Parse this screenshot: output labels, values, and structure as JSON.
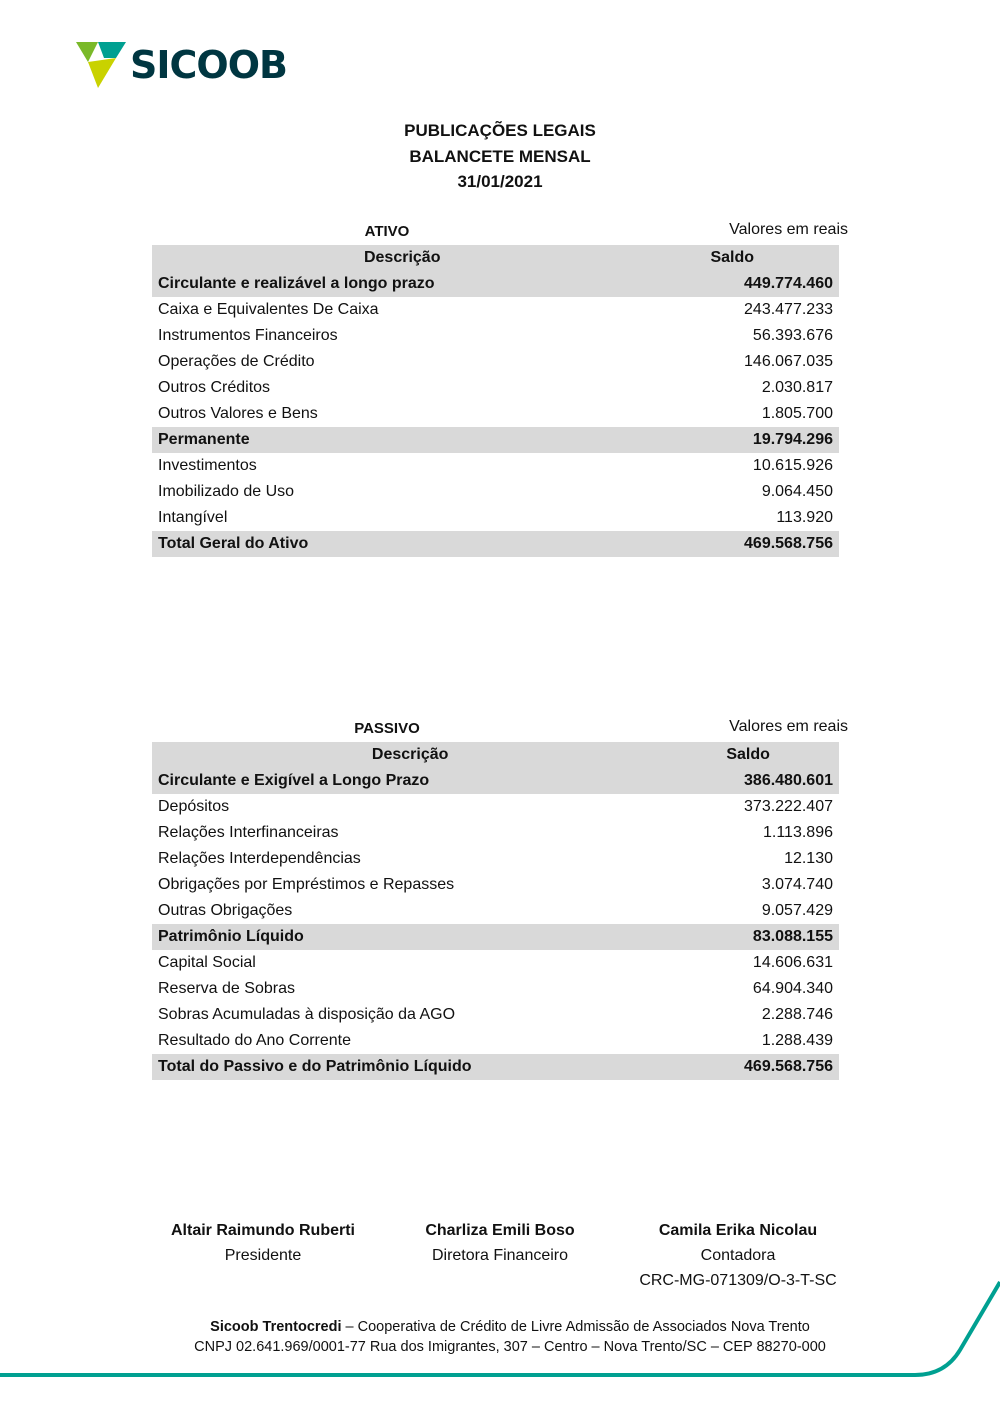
{
  "logo": {
    "text": "SICOOB",
    "colors": {
      "green": "#7ab929",
      "teal": "#00a091",
      "lime": "#c9d200",
      "dark": "#003641"
    }
  },
  "header": {
    "line1": "PUBLICAÇÕES LEGAIS",
    "line2": "BALANCETE MENSAL",
    "line3": "31/01/2021"
  },
  "ativo": {
    "label": "ATIVO",
    "units": "Valores em reais",
    "col_desc": "Descrição",
    "col_saldo": "Saldo",
    "rows": [
      {
        "desc": "Circulante e realizável a longo prazo",
        "value": "449.774.460",
        "bold": true
      },
      {
        "desc": "Caixa e Equivalentes De Caixa",
        "value": "243.477.233"
      },
      {
        "desc": "Instrumentos Financeiros",
        "value": "56.393.676"
      },
      {
        "desc": "Operações de Crédito",
        "value": "146.067.035"
      },
      {
        "desc": "Outros Créditos",
        "value": "2.030.817"
      },
      {
        "desc": "Outros Valores e Bens",
        "value": "1.805.700"
      },
      {
        "desc": "Permanente",
        "value": "19.794.296",
        "bold": true
      },
      {
        "desc": "Investimentos",
        "value": "10.615.926"
      },
      {
        "desc": "Imobilizado de Uso",
        "value": "9.064.450"
      },
      {
        "desc": "Intangível",
        "value": "113.920"
      },
      {
        "desc": "Total Geral do Ativo",
        "value": "469.568.756",
        "bold": true
      }
    ]
  },
  "passivo": {
    "label": "PASSIVO",
    "units": "Valores em reais",
    "col_desc": "Descrição",
    "col_saldo": "Saldo",
    "rows": [
      {
        "desc": "Circulante e Exigível a Longo Prazo",
        "value": "386.480.601",
        "bold": true
      },
      {
        "desc": "Depósitos",
        "value": "373.222.407"
      },
      {
        "desc": "Relações Interfinanceiras",
        "value": "1.113.896"
      },
      {
        "desc": "Relações Interdependências",
        "value": "12.130"
      },
      {
        "desc": "Obrigações por Empréstimos e Repasses",
        "value": "3.074.740"
      },
      {
        "desc": "Outras Obrigações",
        "value": "9.057.429"
      },
      {
        "desc": "Patrimônio Líquido",
        "value": "83.088.155",
        "bold": true
      },
      {
        "desc": "Capital Social",
        "value": "14.606.631"
      },
      {
        "desc": "Reserva de Sobras",
        "value": "64.904.340"
      },
      {
        "desc": "Sobras Acumuladas à disposição da AGO",
        "value": "2.288.746"
      },
      {
        "desc": "Resultado do Ano Corrente",
        "value": "1.288.439"
      },
      {
        "desc": "Total do Passivo e do Patrimônio Líquido",
        "value": "469.568.756",
        "bold": true
      }
    ]
  },
  "signatures": [
    {
      "name": "Altair Raimundo Ruberti",
      "role": "Presidente"
    },
    {
      "name": "Charliza Emili Boso",
      "role": "Diretora Financeiro"
    },
    {
      "name": "Camila Erika Nicolau",
      "role": "Contadora",
      "extra": "CRC-MG-071309/O-3-T-SC"
    }
  ],
  "footer": {
    "org": "Sicoob Trentocredi",
    "line1": " – Cooperativa de Crédito de Livre Admissão de Associados Nova Trento",
    "line2": "CNPJ 02.641.969/0001-77 Rua dos Imigrantes, 307 – Centro – Nova Trento/SC – CEP 88270-000"
  }
}
